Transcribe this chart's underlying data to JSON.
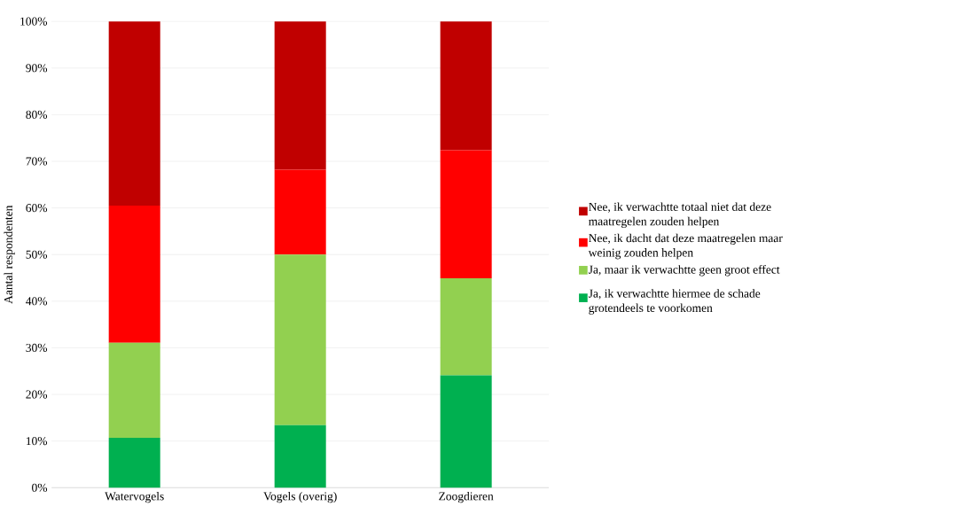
{
  "chart_data": {
    "type": "bar",
    "stacked": true,
    "ylabel": "Aantal respondenten",
    "categories": [
      "Watervogels",
      "Vogels (overig)",
      "Zoogdieren"
    ],
    "series": [
      {
        "name": "Ja, ik verwachtte hiermee de schade grotendeels te voorkomen",
        "color": "#00b050",
        "values": [
          10.7,
          13.4,
          24.1
        ]
      },
      {
        "name": "Ja, maar ik verwachtte geen groot effect",
        "color": "#92d050",
        "values": [
          20.4,
          36.6,
          20.8
        ]
      },
      {
        "name": "Nee, ik dacht dat deze maatregelen maar weinig zouden helpen",
        "color": "#ff0000",
        "values": [
          29.4,
          18.2,
          27.5
        ]
      },
      {
        "name": "Nee, ik verwachtte totaal niet dat deze maatregelen zouden helpen",
        "color": "#c00000",
        "values": [
          39.5,
          31.8,
          27.6
        ]
      }
    ],
    "ylim": [
      0,
      100
    ],
    "yticks": [
      {
        "value": 0,
        "label": "0%"
      },
      {
        "value": 10,
        "label": "10%"
      },
      {
        "value": 20,
        "label": "20%"
      },
      {
        "value": 30,
        "label": "30%"
      },
      {
        "value": 40,
        "label": "40%"
      },
      {
        "value": 50,
        "label": "50%"
      },
      {
        "value": 60,
        "label": "60%"
      },
      {
        "value": 70,
        "label": "70%"
      },
      {
        "value": 80,
        "label": "80%"
      },
      {
        "value": 90,
        "label": "90%"
      },
      {
        "value": 100,
        "label": "100%"
      }
    ],
    "grid": "y",
    "legend": "right"
  }
}
